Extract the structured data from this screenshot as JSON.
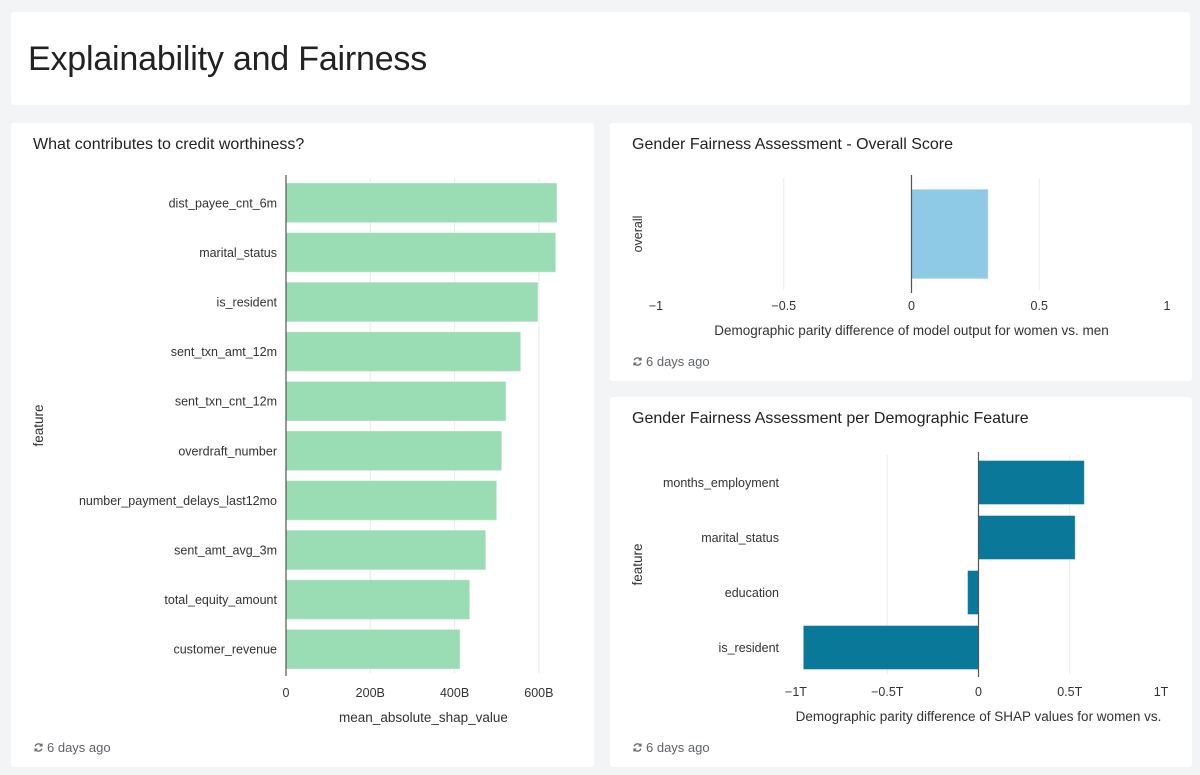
{
  "page": {
    "title": "Explainability and Fairness"
  },
  "cards": {
    "left": {
      "title": "What contributes to credit worthiness?",
      "refresh": "6 days ago"
    },
    "top_right": {
      "title": "Gender Fairness Assessment - Overall Score",
      "refresh": "6 days ago"
    },
    "bottom_right": {
      "title": "Gender Fairness Assessment per Demographic Feature",
      "refresh": "6 days ago"
    }
  },
  "chart_data": [
    {
      "type": "bar",
      "orientation": "horizontal",
      "title": "What contributes to credit worthiness?",
      "xlabel": "mean_absolute_shap_value",
      "ylabel": "feature",
      "categories": [
        "dist_payee_cnt_6m",
        "marital_status",
        "is_resident",
        "sent_txn_amt_12m",
        "sent_txn_cnt_12m",
        "overdraft_number",
        "number_payment_delays_last12mo",
        "sent_amt_avg_3m",
        "total_equity_amount",
        "customer_revenue"
      ],
      "values": [
        643,
        640,
        598,
        557,
        522,
        512,
        500,
        474,
        436,
        413
      ],
      "value_unit": "B (billions)",
      "xlim": [
        0,
        700
      ],
      "xticks": [
        0,
        200,
        400,
        600
      ],
      "xtick_labels": [
        "0",
        "200B",
        "400B",
        "600B"
      ],
      "grid": true,
      "color": "#9ADDB4"
    },
    {
      "type": "bar",
      "orientation": "horizontal",
      "title": "Gender Fairness Assessment - Overall Score",
      "xlabel": "Demographic parity difference of model output for women vs. men",
      "ylabel": "",
      "categories": [
        "overall"
      ],
      "values": [
        0.3
      ],
      "xlim": [
        -1,
        1
      ],
      "xticks": [
        -1,
        -0.5,
        0,
        0.5,
        1
      ],
      "xtick_labels": [
        "−1",
        "−0.5",
        "0",
        "0.5",
        "1"
      ],
      "grid": true,
      "color": "#8EC9E6"
    },
    {
      "type": "bar",
      "orientation": "horizontal",
      "title": "Gender Fairness Assessment per Demographic Feature",
      "xlabel": "Demographic parity difference of SHAP values for women vs.",
      "ylabel": "feature",
      "categories": [
        "months_employment",
        "marital_status",
        "education",
        "is_resident"
      ],
      "values": [
        0.58,
        0.53,
        -0.06,
        -0.96
      ],
      "value_unit": "T (trillions)",
      "xlim": [
        -1,
        1
      ],
      "xticks": [
        -1,
        -0.5,
        0,
        0.5,
        1
      ],
      "xtick_labels": [
        "−1T",
        "−0.5T",
        "0",
        "0.5T",
        "1T"
      ],
      "grid": true,
      "color": "#0A7899"
    }
  ]
}
